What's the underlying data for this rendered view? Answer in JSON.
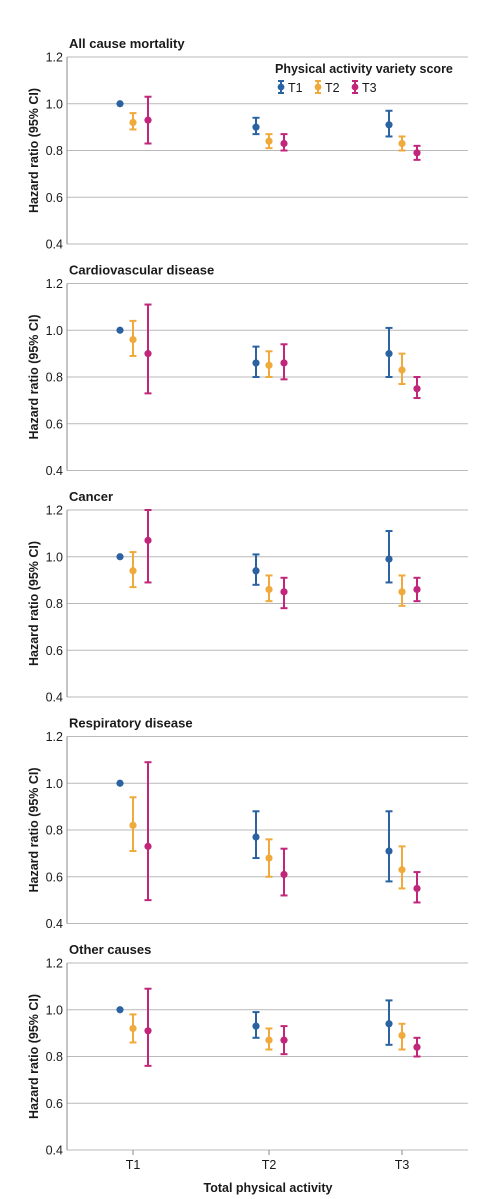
{
  "chart_data": {
    "type": "scatter",
    "subtype": "forest / point-range",
    "xlabel": "Total physical activity",
    "categories": [
      "T1",
      "T2",
      "T3"
    ],
    "legend": {
      "title": "Physical activity variety score",
      "placement": "top-right",
      "entries": [
        "T1",
        "T2",
        "T3"
      ]
    },
    "colors": {
      "T1": "#2b62a2",
      "T2": "#f0aa3c",
      "T3": "#c1267a"
    },
    "grid": "horizontal",
    "panels": [
      {
        "title": "All cause mortality",
        "ylabel": "Hazard ratio (95% CI)",
        "ylim": [
          0.4,
          1.2
        ],
        "yticks": [
          "0.4",
          "0.6",
          "0.8",
          "1.0",
          "1.2"
        ],
        "series": [
          {
            "name": "T1",
            "points": [
              [
                1.0,
                null,
                null
              ],
              [
                0.9,
                0.87,
                0.94
              ],
              [
                0.91,
                0.86,
                0.97
              ]
            ]
          },
          {
            "name": "T2",
            "points": [
              [
                0.92,
                0.89,
                0.96
              ],
              [
                0.84,
                0.81,
                0.87
              ],
              [
                0.83,
                0.8,
                0.86
              ]
            ]
          },
          {
            "name": "T3",
            "points": [
              [
                0.93,
                0.83,
                1.03
              ],
              [
                0.83,
                0.8,
                0.87
              ],
              [
                0.79,
                0.76,
                0.82
              ]
            ]
          }
        ]
      },
      {
        "title": "Cardiovascular disease",
        "ylabel": "Hazard ratio (95% CI)",
        "ylim": [
          0.4,
          1.2
        ],
        "yticks": [
          "0.4",
          "0.6",
          "0.8",
          "1.0",
          "1.2"
        ],
        "series": [
          {
            "name": "T1",
            "points": [
              [
                1.0,
                null,
                null
              ],
              [
                0.86,
                0.8,
                0.93
              ],
              [
                0.9,
                0.8,
                1.01
              ]
            ]
          },
          {
            "name": "T2",
            "points": [
              [
                0.96,
                0.89,
                1.04
              ],
              [
                0.85,
                0.8,
                0.91
              ],
              [
                0.83,
                0.77,
                0.9
              ]
            ]
          },
          {
            "name": "T3",
            "points": [
              [
                0.9,
                0.73,
                1.11
              ],
              [
                0.86,
                0.79,
                0.94
              ],
              [
                0.75,
                0.71,
                0.8
              ]
            ]
          }
        ]
      },
      {
        "title": "Cancer",
        "ylabel": "Hazard ratio (95% CI)",
        "ylim": [
          0.4,
          1.2
        ],
        "yticks": [
          "0.4",
          "0.6",
          "0.8",
          "1.0",
          "1.2"
        ],
        "series": [
          {
            "name": "T1",
            "points": [
              [
                1.0,
                null,
                null
              ],
              [
                0.94,
                0.88,
                1.01
              ],
              [
                0.99,
                0.89,
                1.11
              ]
            ]
          },
          {
            "name": "T2",
            "points": [
              [
                0.94,
                0.87,
                1.02
              ],
              [
                0.86,
                0.81,
                0.92
              ],
              [
                0.85,
                0.79,
                0.92
              ]
            ]
          },
          {
            "name": "T3",
            "points": [
              [
                1.07,
                0.89,
                1.2
              ],
              [
                0.85,
                0.78,
                0.91
              ],
              [
                0.86,
                0.81,
                0.91
              ]
            ]
          }
        ]
      },
      {
        "title": "Respiratory disease",
        "ylabel": "Hazard ratio (95% CI)",
        "ylim": [
          0.4,
          1.2
        ],
        "yticks": [
          "0.4",
          "0.6",
          "0.8",
          "1.0",
          "1.2"
        ],
        "series": [
          {
            "name": "T1",
            "points": [
              [
                1.0,
                null,
                null
              ],
              [
                0.77,
                0.68,
                0.88
              ],
              [
                0.71,
                0.58,
                0.88
              ]
            ]
          },
          {
            "name": "T2",
            "points": [
              [
                0.82,
                0.71,
                0.94
              ],
              [
                0.68,
                0.6,
                0.76
              ],
              [
                0.63,
                0.55,
                0.73
              ]
            ]
          },
          {
            "name": "T3",
            "points": [
              [
                0.73,
                0.5,
                1.09
              ],
              [
                0.61,
                0.52,
                0.72
              ],
              [
                0.55,
                0.49,
                0.62
              ]
            ]
          }
        ]
      },
      {
        "title": "Other causes",
        "ylabel": "Hazard ratio (95% CI)",
        "ylim": [
          0.4,
          1.2
        ],
        "yticks": [
          "0.4",
          "0.6",
          "0.8",
          "1.0",
          "1.2"
        ],
        "series": [
          {
            "name": "T1",
            "points": [
              [
                1.0,
                null,
                null
              ],
              [
                0.93,
                0.88,
                0.99
              ],
              [
                0.94,
                0.85,
                1.04
              ]
            ]
          },
          {
            "name": "T2",
            "points": [
              [
                0.92,
                0.86,
                0.98
              ],
              [
                0.87,
                0.83,
                0.92
              ],
              [
                0.89,
                0.83,
                0.94
              ]
            ]
          },
          {
            "name": "T3",
            "points": [
              [
                0.91,
                0.76,
                1.09
              ],
              [
                0.87,
                0.81,
                0.93
              ],
              [
                0.84,
                0.8,
                0.88
              ]
            ]
          }
        ]
      }
    ]
  }
}
